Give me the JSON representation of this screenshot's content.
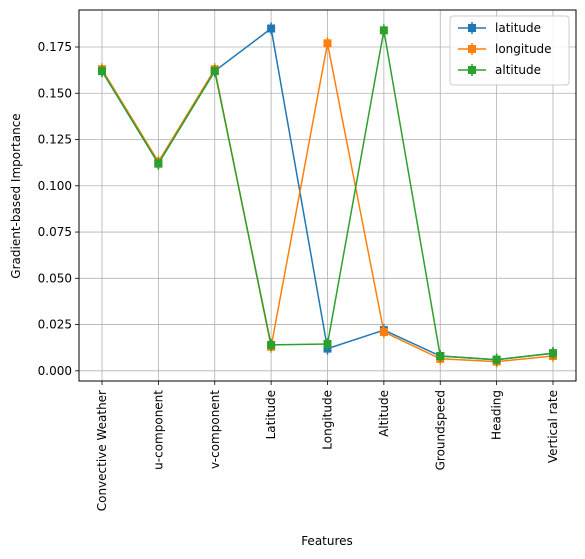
{
  "chart_data": {
    "type": "line",
    "xlabel": "Features",
    "ylabel": "Gradient-based Importance",
    "categories": [
      "Convective Weather",
      "u-component",
      "v-component",
      "Latitude",
      "Longitude",
      "Altitude",
      "Groundspeed",
      "Heading",
      "Vertical rate"
    ],
    "yticks": [
      "0.000",
      "0.025",
      "0.050",
      "0.075",
      "0.100",
      "0.125",
      "0.150",
      "0.175"
    ],
    "ylim": [
      -0.0055,
      0.195
    ],
    "grid": true,
    "legend_position": "top-right",
    "series": [
      {
        "name": "latitude",
        "color": "#1f77b4",
        "values": [
          0.162,
          0.112,
          0.162,
          0.185,
          0.012,
          0.022,
          0.008,
          0.006,
          0.0095
        ]
      },
      {
        "name": "longitude",
        "color": "#ff7f0e",
        "values": [
          0.163,
          0.113,
          0.163,
          0.013,
          0.177,
          0.021,
          0.0065,
          0.005,
          0.008
        ]
      },
      {
        "name": "altitude",
        "color": "#2ca02c",
        "values": [
          0.162,
          0.112,
          0.162,
          0.014,
          0.0145,
          0.184,
          0.008,
          0.006,
          0.0095
        ]
      }
    ]
  }
}
